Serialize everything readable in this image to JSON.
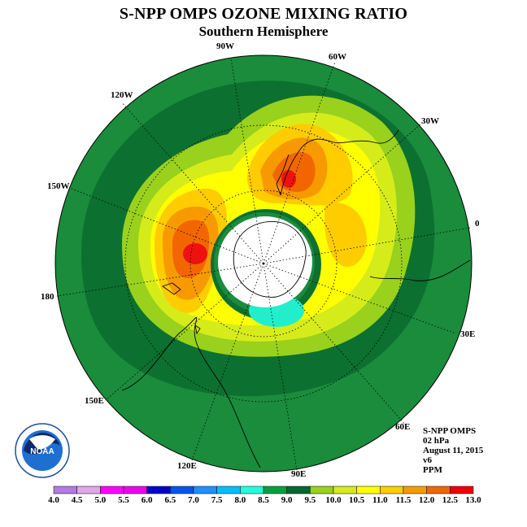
{
  "header": {
    "title": "S-NPP OMPS OZONE MIXING RATIO",
    "subtitle": "Southern Hemisphere"
  },
  "map": {
    "projection": "south-polar-stereographic",
    "longitude_labels": [
      "90W",
      "60W",
      "30W",
      "0",
      "30E",
      "60E",
      "90E",
      "120E",
      "150E",
      "180",
      "150W",
      "120W"
    ],
    "polar_night_region": "white",
    "colors": {
      "background": "#1a8c3c",
      "dark_green": "#0c7030",
      "lime": "#99d11c",
      "yellow_green": "#d6ec1a",
      "yellow": "#ffff00",
      "gold": "#ffcc00",
      "orange": "#f79a00",
      "dark_orange": "#f26600",
      "red": "#ee1111",
      "cyan": "#22eecc"
    }
  },
  "info_block": {
    "instrument": "S-NPP OMPS",
    "level": "02 hPa",
    "date": "August 11, 2015",
    "version": "v6",
    "units": "PPM"
  },
  "legend": {
    "ticks": [
      "4.0",
      "4.5",
      "5.0",
      "5.5",
      "6.0",
      "6.5",
      "7.0",
      "7.5",
      "8.0",
      "8.5",
      "9.0",
      "9.5",
      "10.0",
      "10.5",
      "11.0",
      "11.5",
      "12.0",
      "12.5",
      "13.0"
    ],
    "colors": [
      "#b37ae6",
      "#e0a8e8",
      "#ff00ff",
      "#ee00ee",
      "#0000cc",
      "#0055ee",
      "#1e90ff",
      "#00bfff",
      "#22ffdd",
      "#00a040",
      "#006830",
      "#99d11c",
      "#d6ec1a",
      "#ffff00",
      "#ffcc00",
      "#f79a00",
      "#f26600",
      "#ee0000",
      "#8b5a2b"
    ]
  },
  "logo": {
    "text": "NOAA",
    "ring_text": "NATIONAL OCEANIC AND ATMOSPHERIC ADMINISTRATION · U.S. DEPARTMENT OF COMMERCE"
  }
}
